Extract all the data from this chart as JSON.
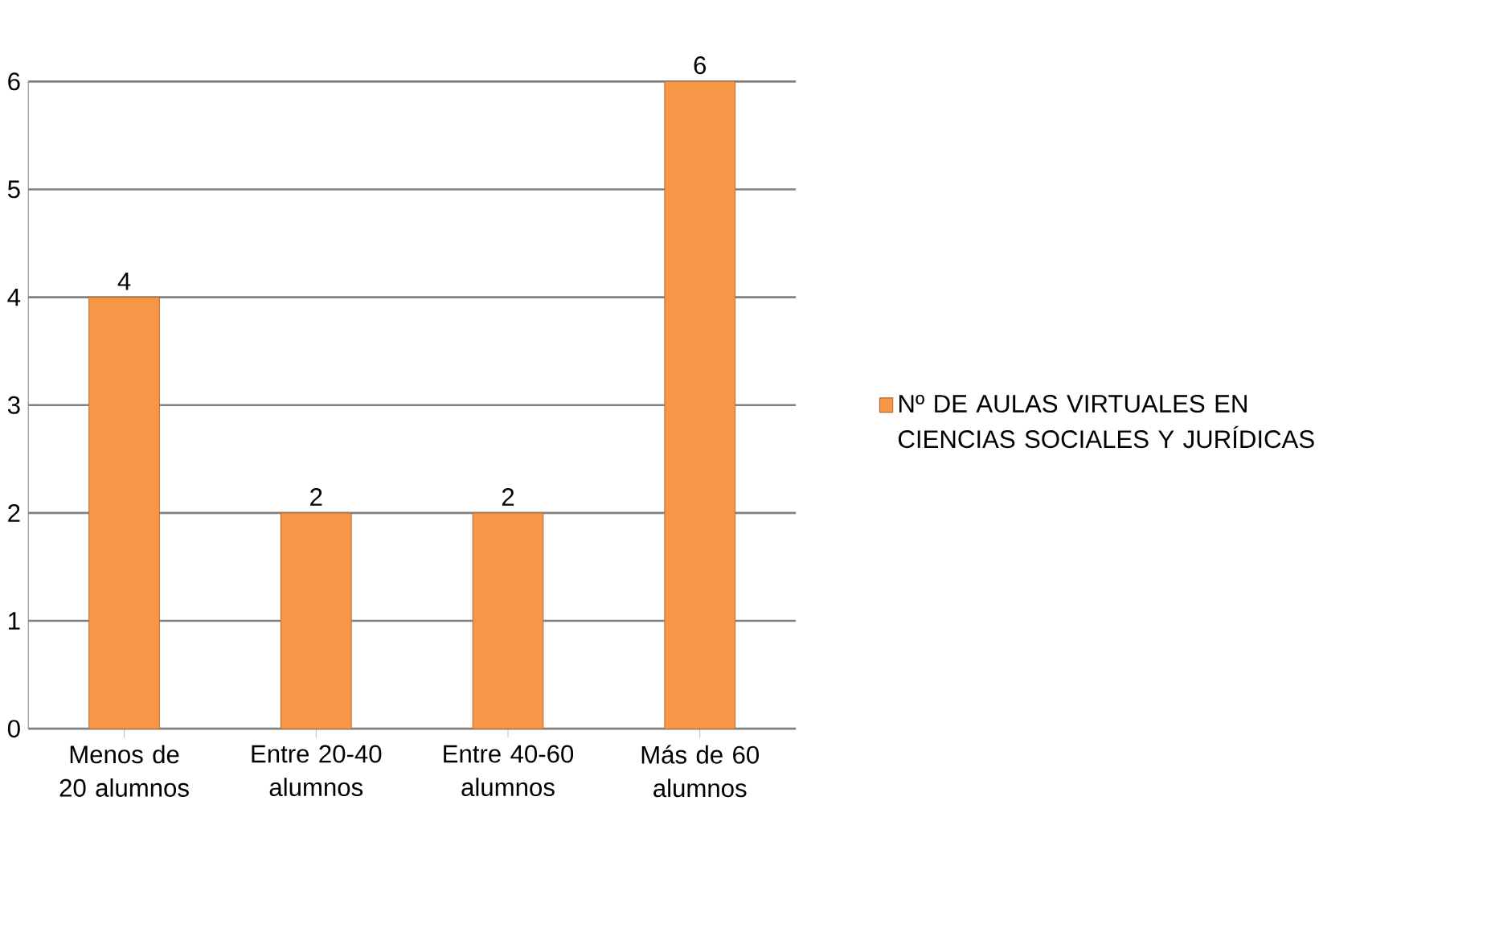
{
  "chart_data": {
    "type": "bar",
    "categories": [
      "Menos de 20 alumnos",
      "Entre 20-40 alumnos",
      "Entre 40-60 alumnos",
      "Más de 60 alumnos"
    ],
    "series": [
      {
        "name": "Nº DE AULAS VIRTUALES EN CIENCIAS SOCIALES Y JURÍDICAS",
        "color": "#f79646",
        "values": [
          4,
          2,
          2,
          6
        ]
      }
    ],
    "ylim": [
      0,
      6
    ],
    "yticks": [
      0,
      1,
      2,
      3,
      4,
      5,
      6
    ],
    "grid": "y",
    "legend": "right",
    "data_labels": true
  }
}
